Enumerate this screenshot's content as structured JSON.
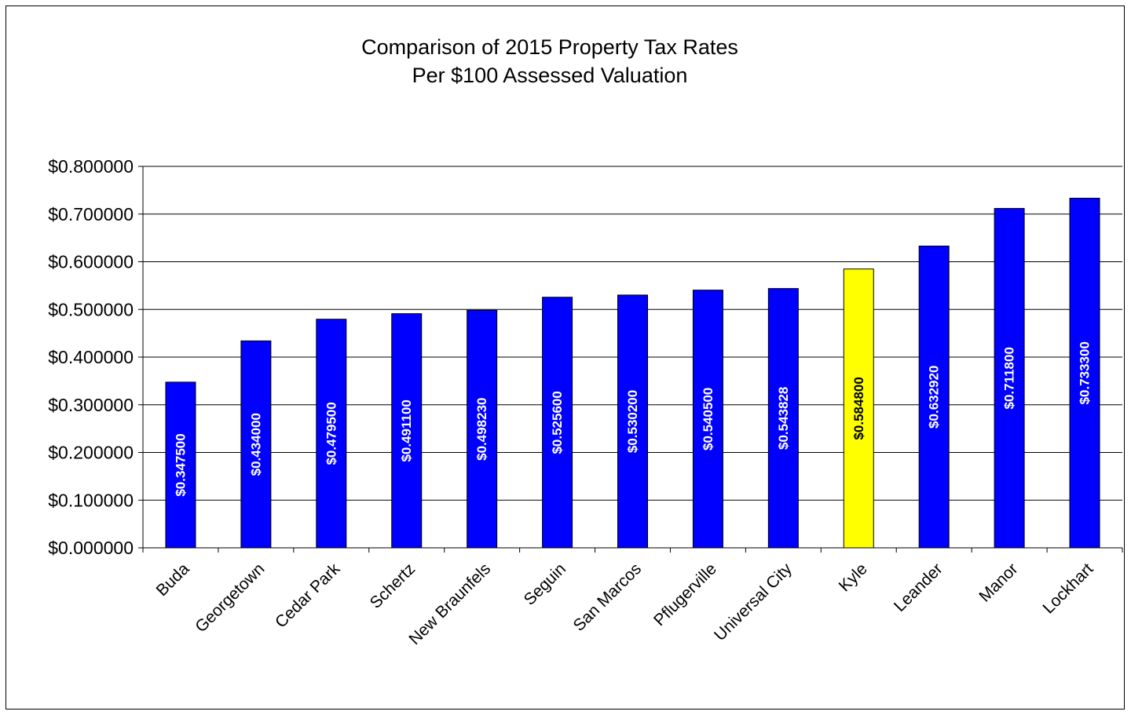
{
  "chart_data": {
    "type": "bar",
    "title_lines": [
      "Comparison of 2015 Property Tax Rates",
      "Per $100 Assessed Valuation"
    ],
    "categories": [
      "Buda",
      "Georgetown",
      "Cedar Park",
      "Schertz",
      "New Braunfels",
      "Seguin",
      "San Marcos",
      "Pflugerville",
      "Universal City",
      "Kyle",
      "Leander",
      "Manor",
      "Lockhart"
    ],
    "values": [
      0.3475,
      0.434,
      0.4795,
      0.4911,
      0.49823,
      0.5256,
      0.5302,
      0.5405,
      0.543828,
      0.5848,
      0.63292,
      0.7118,
      0.7333
    ],
    "data_labels": [
      "$0.347500",
      "$0.434000",
      "$0.479500",
      "$0.491100",
      "$0.498230",
      "$0.525600",
      "$0.530200",
      "$0.540500",
      "$0.543828",
      "$0.584800",
      "$0.632920",
      "$0.711800",
      "$0.733300"
    ],
    "ylim": [
      0,
      0.8
    ],
    "yticks": [
      0,
      0.1,
      0.2,
      0.3,
      0.4,
      0.5,
      0.6,
      0.7,
      0.8
    ],
    "ytick_labels": [
      "$0.000000",
      "$0.100000",
      "$0.200000",
      "$0.300000",
      "$0.400000",
      "$0.500000",
      "$0.600000",
      "$0.700000",
      "$0.800000"
    ],
    "grid": true,
    "legend": false,
    "bar_color": "#0000FF",
    "highlight": {
      "category": "Kyle",
      "color": "#FFFF00",
      "label_color": "#000000"
    },
    "label_color": "#FFFFFF"
  }
}
